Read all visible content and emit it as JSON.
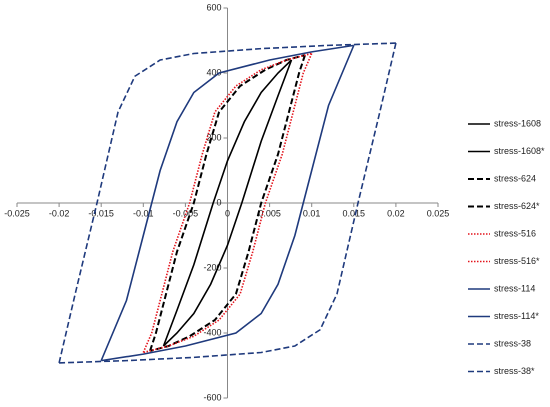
{
  "chart_data": {
    "type": "line",
    "xlim": [
      -0.025,
      0.025
    ],
    "xticks": [
      -0.025,
      -0.02,
      -0.015,
      -0.01,
      -0.005,
      0,
      0.005,
      0.01,
      0.015,
      0.02,
      0.025
    ],
    "ylim": [
      -600,
      600
    ],
    "yticks": [
      -600,
      -400,
      -200,
      0,
      200,
      400,
      600
    ],
    "grid": false,
    "legend": "right",
    "series": [
      {
        "name": "stress-1608",
        "color": "#000000",
        "dash": "solid",
        "x": [
          -0.0076,
          -0.006,
          -0.004,
          -0.0017,
          0,
          0.002,
          0.004,
          0.006,
          0.0076
        ],
        "values": [
          -440,
          -330,
          -190,
          0,
          130,
          250,
          340,
          400,
          440
        ]
      },
      {
        "name": "stress-1608*",
        "color": "#000000",
        "dash": "solid",
        "x": [
          0.0076,
          0.006,
          0.004,
          0.0017,
          0,
          -0.002,
          -0.004,
          -0.006,
          -0.0076
        ],
        "values": [
          440,
          330,
          190,
          0,
          -130,
          -250,
          -340,
          -400,
          -440
        ]
      },
      {
        "name": "stress-624",
        "color": "#000000",
        "dash": "dashed",
        "x": [
          -0.0092,
          -0.0085,
          -0.0075,
          -0.006,
          -0.004,
          -0.0025,
          -0.001,
          0.0015,
          0.0045,
          0.007,
          0.0092
        ],
        "values": [
          -455,
          -400,
          -300,
          -150,
          0,
          150,
          280,
          360,
          410,
          440,
          455
        ]
      },
      {
        "name": "stress-624*",
        "color": "#000000",
        "dash": "dashed",
        "x": [
          0.0092,
          0.0085,
          0.0075,
          0.006,
          0.004,
          0.0025,
          0.001,
          -0.0015,
          -0.0045,
          -0.007,
          -0.0092
        ],
        "values": [
          455,
          400,
          300,
          150,
          0,
          -150,
          -280,
          -360,
          -410,
          -440,
          -455
        ]
      },
      {
        "name": "stress-516",
        "color": "#e3141c",
        "dash": "dotted",
        "x": [
          -0.01,
          -0.009,
          -0.008,
          -0.0065,
          -0.0045,
          -0.003,
          -0.0015,
          0.001,
          0.004,
          0.007,
          0.01
        ],
        "values": [
          -460,
          -400,
          -300,
          -150,
          0,
          150,
          280,
          360,
          410,
          440,
          460
        ]
      },
      {
        "name": "stress-516*",
        "color": "#e3141c",
        "dash": "dotted",
        "x": [
          0.01,
          0.009,
          0.008,
          0.0065,
          0.0045,
          0.003,
          0.0015,
          -0.001,
          -0.004,
          -0.007,
          -0.01
        ],
        "values": [
          460,
          400,
          300,
          150,
          0,
          -150,
          -280,
          -360,
          -410,
          -440,
          -460
        ]
      },
      {
        "name": "stress-114",
        "color": "#1f3a7d",
        "dash": "solid",
        "x": [
          -0.015,
          -0.012,
          -0.01,
          -0.008,
          -0.006,
          -0.004,
          -0.001,
          0.005,
          0.01,
          0.015
        ],
        "values": [
          -485,
          -300,
          -100,
          100,
          250,
          340,
          400,
          440,
          465,
          485
        ]
      },
      {
        "name": "stress-114*",
        "color": "#1f3a7d",
        "dash": "solid",
        "x": [
          0.015,
          0.012,
          0.01,
          0.008,
          0.006,
          0.004,
          0.001,
          -0.005,
          -0.01,
          -0.015
        ],
        "values": [
          485,
          300,
          100,
          -100,
          -250,
          -340,
          -400,
          -440,
          -465,
          -485
        ]
      },
      {
        "name": "stress-38",
        "color": "#1f3a7d",
        "dash": "dashed",
        "x": [
          -0.02,
          -0.018,
          -0.0155,
          -0.013,
          -0.011,
          -0.008,
          -0.004,
          0.004,
          0.012,
          0.02
        ],
        "values": [
          -492,
          -270,
          0,
          280,
          390,
          440,
          460,
          475,
          485,
          492
        ]
      },
      {
        "name": "stress-38*",
        "color": "#1f3a7d",
        "dash": "dashed",
        "x": [
          0.02,
          0.018,
          0.0155,
          0.013,
          0.011,
          0.008,
          0.004,
          -0.004,
          -0.012,
          -0.02
        ],
        "values": [
          492,
          270,
          0,
          -280,
          -390,
          -440,
          -460,
          -475,
          -485,
          -492
        ]
      }
    ]
  }
}
